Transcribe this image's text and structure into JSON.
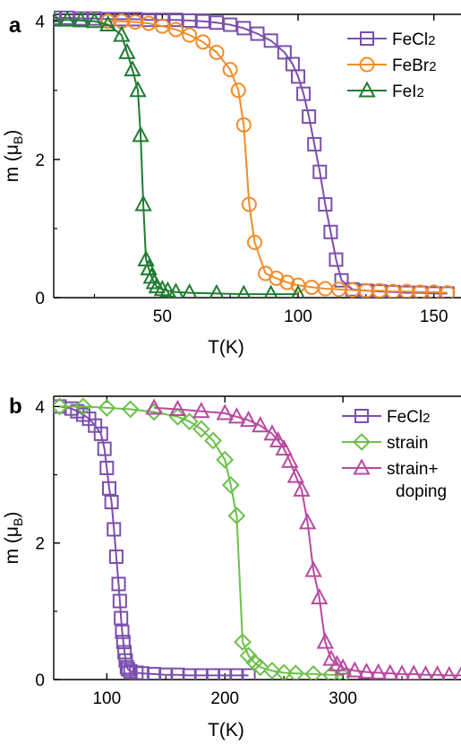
{
  "chart_data": [
    {
      "panel": "a",
      "type": "line",
      "xlabel": "T(K)",
      "ylabel": "m (μB)",
      "ylabel_main": "m (",
      "ylabel_mu": "μ",
      "ylabel_sub": "B",
      "ylabel_close": ")",
      "xlim": [
        10,
        160
      ],
      "ylim": [
        0,
        4.1
      ],
      "xticks": [
        50,
        100,
        150
      ],
      "yticks": [
        0,
        2,
        4
      ],
      "legend_position": "top-right",
      "series": [
        {
          "name": "FeCl2",
          "name_main": "FeCl",
          "name_sub": "2",
          "color": "#7b4fae",
          "marker": "square",
          "x": [
            10,
            15,
            20,
            25,
            30,
            35,
            40,
            45,
            50,
            55,
            60,
            65,
            70,
            75,
            80,
            85,
            90,
            95,
            98,
            100,
            102,
            104,
            106,
            108,
            110,
            112,
            114,
            116,
            120,
            125,
            130,
            135,
            140,
            145,
            150,
            155
          ],
          "y": [
            4.05,
            4.05,
            4.04,
            4.04,
            4.03,
            4.03,
            4.03,
            4.02,
            4.02,
            4.02,
            4.01,
            4.0,
            3.98,
            3.95,
            3.9,
            3.82,
            3.72,
            3.55,
            3.38,
            3.2,
            2.95,
            2.62,
            2.22,
            1.82,
            1.35,
            0.95,
            0.55,
            0.25,
            0.12,
            0.1,
            0.09,
            0.08,
            0.07,
            0.07,
            0.06,
            0.06
          ]
        },
        {
          "name": "FeBr2",
          "name_main": "FeBr",
          "name_sub": "2",
          "color": "#f28c28",
          "marker": "circle",
          "x": [
            30,
            35,
            40,
            45,
            50,
            55,
            60,
            65,
            70,
            75,
            78,
            80,
            82,
            84,
            88,
            92,
            96,
            100,
            105,
            110,
            115,
            120,
            125,
            130,
            135,
            140,
            145,
            150,
            155
          ],
          "y": [
            4.0,
            4.0,
            3.99,
            3.97,
            3.93,
            3.88,
            3.8,
            3.7,
            3.55,
            3.3,
            3.0,
            2.5,
            1.35,
            0.8,
            0.35,
            0.28,
            0.22,
            0.18,
            0.15,
            0.13,
            0.12,
            0.11,
            0.1,
            0.1,
            0.09,
            0.09,
            0.08,
            0.08,
            0.07
          ]
        },
        {
          "name": "FeI2",
          "name_main": "FeI",
          "name_sub": "2",
          "color": "#1e7d32",
          "marker": "triangle",
          "x": [
            10,
            15,
            20,
            25,
            30,
            35,
            37,
            39,
            41,
            42,
            43,
            44,
            45,
            46,
            47,
            48,
            50,
            52,
            55,
            60,
            70,
            80,
            90,
            100
          ],
          "y": [
            4.02,
            4.02,
            4.01,
            4.0,
            3.95,
            3.8,
            3.55,
            3.3,
            3.0,
            2.35,
            1.35,
            0.55,
            0.42,
            0.3,
            0.22,
            0.16,
            0.12,
            0.1,
            0.08,
            0.07,
            0.06,
            0.05,
            0.05,
            0.05
          ]
        }
      ]
    },
    {
      "panel": "b",
      "type": "line",
      "xlabel": "T(K)",
      "ylabel": "m (μB)",
      "ylabel_main": "m (",
      "ylabel_mu": "μ",
      "ylabel_sub": "B",
      "ylabel_close": ")",
      "xlim": [
        55,
        400
      ],
      "ylim": [
        0,
        4.15
      ],
      "xticks": [
        100,
        200,
        300
      ],
      "yticks": [
        0,
        2,
        4
      ],
      "legend_position": "top-right",
      "series": [
        {
          "name": "FeCl2",
          "name_main": "FeCl",
          "name_sub": "2",
          "color": "#7b4fae",
          "marker": "square",
          "x": [
            60,
            70,
            75,
            80,
            85,
            90,
            95,
            98,
            100,
            102,
            104,
            106,
            108,
            110,
            111,
            112,
            113,
            114,
            115,
            116,
            117,
            118,
            120,
            125,
            130,
            140,
            150,
            160,
            170,
            180,
            190,
            200,
            210,
            220
          ],
          "y": [
            4.0,
            3.97,
            3.93,
            3.88,
            3.82,
            3.72,
            3.6,
            3.38,
            3.1,
            2.8,
            2.6,
            2.2,
            1.8,
            1.4,
            1.15,
            0.9,
            0.7,
            0.55,
            0.4,
            0.28,
            0.18,
            0.15,
            0.12,
            0.1,
            0.09,
            0.08,
            0.07,
            0.07,
            0.06,
            0.06,
            0.06,
            0.06,
            0.06,
            0.06
          ]
        },
        {
          "name": "strain",
          "name_main": "strain",
          "name_sub": "",
          "color": "#6dc04b",
          "marker": "diamond",
          "x": [
            60,
            80,
            100,
            120,
            140,
            160,
            170,
            180,
            190,
            200,
            205,
            210,
            215,
            220,
            225,
            230,
            240,
            250,
            260,
            275,
            290,
            300
          ],
          "y": [
            4.0,
            4.0,
            3.98,
            3.96,
            3.92,
            3.85,
            3.78,
            3.67,
            3.5,
            3.22,
            2.85,
            2.4,
            0.55,
            0.35,
            0.25,
            0.18,
            0.13,
            0.1,
            0.09,
            0.08,
            0.07,
            0.06
          ]
        },
        {
          "name": "strain+doping",
          "name_main": "strain+",
          "name_line2": "doping",
          "name_sub": "",
          "color": "#b84aa0",
          "marker": "triangle",
          "x": [
            140,
            160,
            180,
            200,
            210,
            220,
            230,
            240,
            245,
            250,
            255,
            260,
            265,
            270,
            275,
            280,
            285,
            290,
            295,
            300,
            310,
            320,
            330,
            340,
            350,
            360,
            370,
            380,
            390,
            400
          ],
          "y": [
            3.98,
            3.96,
            3.93,
            3.9,
            3.85,
            3.8,
            3.72,
            3.6,
            3.5,
            3.38,
            3.2,
            2.98,
            2.78,
            2.3,
            1.6,
            1.2,
            0.55,
            0.3,
            0.22,
            0.17,
            0.13,
            0.11,
            0.1,
            0.09,
            0.08,
            0.08,
            0.07,
            0.07,
            0.06,
            0.06
          ]
        }
      ]
    }
  ]
}
